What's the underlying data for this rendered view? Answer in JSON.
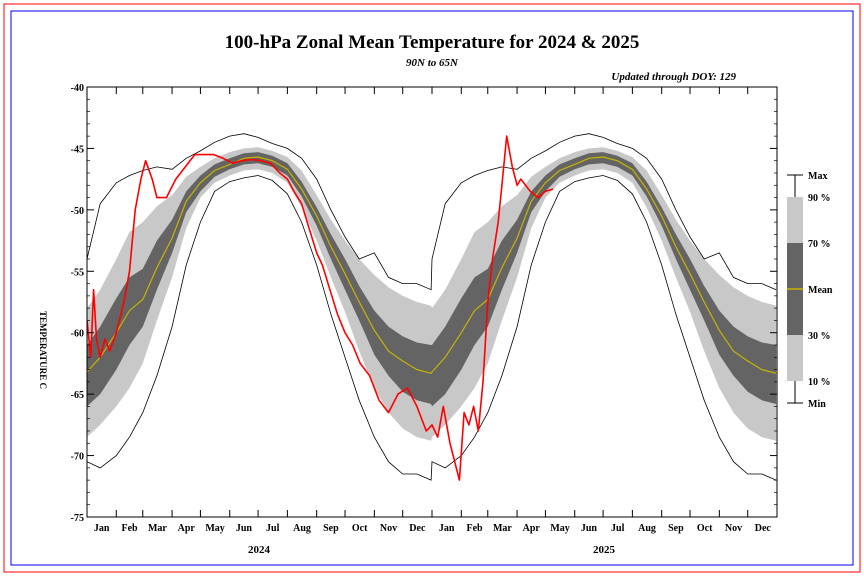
{
  "chart_data": {
    "type": "area",
    "title": "100-hPa Zonal Mean Temperature for 2024 & 2025",
    "subtitle": "90N to 65N",
    "updated": "Updated through DOY: 129",
    "ylabel": "TEMPERATURE C",
    "ylim": [
      -75,
      -40
    ],
    "yticks": [
      -75,
      -70,
      -65,
      -60,
      -55,
      -50,
      -45,
      -40
    ],
    "ytick_labels": [
      "-75",
      "-70",
      "-65",
      "-60",
      "-55",
      "-50",
      "-45",
      "-40"
    ],
    "xlim_days": [
      1,
      731
    ],
    "months": [
      "Jan",
      "Feb",
      "Mar",
      "Apr",
      "May",
      "Jun",
      "Jul",
      "Aug",
      "Sep",
      "Oct",
      "Nov",
      "Dec",
      "Jan",
      "Feb",
      "Mar",
      "Apr",
      "May",
      "Jun",
      "Jul",
      "Aug",
      "Sep",
      "Oct",
      "Nov",
      "Dec"
    ],
    "month_start_days": [
      1,
      32,
      60,
      91,
      121,
      152,
      182,
      213,
      244,
      274,
      305,
      335,
      366,
      397,
      425,
      456,
      486,
      517,
      547,
      578,
      609,
      639,
      670,
      700
    ],
    "years": [
      "2024",
      "2025"
    ],
    "year_center_days": [
      183,
      548
    ],
    "legend": [
      "Max",
      "90 %",
      "70 %",
      "Mean",
      "30 %",
      "10 %",
      "Min"
    ],
    "climatology_days": [
      1,
      15,
      32,
      46,
      60,
      75,
      91,
      106,
      121,
      136,
      152,
      167,
      182,
      197,
      213,
      228,
      244,
      259,
      274,
      289,
      305,
      320,
      335,
      350,
      365
    ],
    "climatology": {
      "mean": [
        -63.2,
        -62.0,
        -60.0,
        -58.2,
        -57.3,
        -54.7,
        -52.3,
        -49.3,
        -47.8,
        -46.8,
        -46.3,
        -45.8,
        -45.7,
        -46.0,
        -46.7,
        -48.3,
        -50.5,
        -53.0,
        -55.2,
        -57.5,
        -59.8,
        -61.5,
        -62.3,
        -63.0,
        -63.3
      ],
      "p10": [
        -68.5,
        -67.5,
        -66.0,
        -64.5,
        -62.5,
        -59.0,
        -55.5,
        -51.5,
        -49.0,
        -47.8,
        -47.2,
        -46.8,
        -46.7,
        -47.0,
        -47.8,
        -49.8,
        -52.5,
        -55.5,
        -58.3,
        -61.5,
        -64.5,
        -66.5,
        -67.8,
        -68.5,
        -68.8
      ],
      "p30": [
        -66.0,
        -65.0,
        -63.0,
        -61.0,
        -59.5,
        -56.5,
        -53.5,
        -50.2,
        -48.5,
        -47.3,
        -46.7,
        -46.3,
        -46.2,
        -46.5,
        -47.2,
        -48.9,
        -51.3,
        -54.0,
        -56.5,
        -59.0,
        -61.8,
        -63.5,
        -64.8,
        -65.5,
        -65.8
      ],
      "p70": [
        -61.0,
        -59.5,
        -57.2,
        -55.5,
        -54.8,
        -52.5,
        -50.8,
        -48.5,
        -47.2,
        -46.3,
        -45.8,
        -45.4,
        -45.3,
        -45.6,
        -46.2,
        -47.7,
        -49.8,
        -52.0,
        -54.0,
        -56.2,
        -58.2,
        -59.5,
        -60.3,
        -60.8,
        -61.0
      ],
      "p90": [
        -58.0,
        -56.5,
        -54.0,
        -51.8,
        -51.0,
        -49.7,
        -48.8,
        -47.3,
        -46.5,
        -45.8,
        -45.3,
        -45.0,
        -44.9,
        -45.2,
        -45.7,
        -46.8,
        -48.8,
        -50.8,
        -52.5,
        -54.0,
        -55.3,
        -56.3,
        -57.0,
        -57.5,
        -57.8
      ],
      "max": [
        -54.0,
        -49.5,
        -47.8,
        -47.2,
        -46.8,
        -46.5,
        -46.7,
        -45.8,
        -45.2,
        -44.5,
        -44.0,
        -43.8,
        -44.1,
        -44.6,
        -45.0,
        -45.8,
        -47.5,
        -50.0,
        -52.2,
        -54.0,
        -53.5,
        -55.5,
        -56.0,
        -56.0,
        -56.5
      ],
      "min": [
        -70.5,
        -71.0,
        -70.0,
        -68.5,
        -66.5,
        -63.5,
        -59.5,
        -54.5,
        -51.0,
        -48.5,
        -47.7,
        -47.4,
        -47.2,
        -47.6,
        -48.7,
        -51.0,
        -54.5,
        -58.5,
        -62.0,
        -65.5,
        -68.5,
        -70.5,
        -71.5,
        -71.5,
        -72.0
      ]
    },
    "observed": {
      "days": [
        1,
        5,
        8,
        11,
        15,
        20,
        25,
        32,
        40,
        46,
        52,
        58,
        63,
        70,
        75,
        85,
        95,
        105,
        115,
        125,
        135,
        145,
        155,
        165,
        175,
        185,
        195,
        205,
        213,
        220,
        228,
        236,
        244,
        250,
        258,
        266,
        274,
        282,
        290,
        300,
        310,
        320,
        330,
        340,
        350,
        360,
        366,
        372,
        378,
        385,
        390,
        395,
        400,
        405,
        410,
        415,
        420,
        425,
        430,
        436,
        440,
        445,
        451,
        456,
        460,
        465,
        470,
        478,
        486,
        494
      ],
      "temps": [
        -59.0,
        -62.0,
        -56.5,
        -60.5,
        -62.0,
        -60.5,
        -61.5,
        -60.0,
        -57.5,
        -55.0,
        -50.0,
        -47.5,
        -46.0,
        -47.5,
        -49.0,
        -49.0,
        -47.5,
        -46.5,
        -45.5,
        -45.5,
        -45.5,
        -45.8,
        -46.2,
        -46.0,
        -45.9,
        -46.0,
        -46.2,
        -47.0,
        -47.5,
        -48.5,
        -49.5,
        -51.5,
        -53.5,
        -54.5,
        -56.5,
        -58.5,
        -60.0,
        -61.0,
        -62.5,
        -63.5,
        -65.5,
        -66.5,
        -65.0,
        -64.5,
        -66.0,
        -68.0,
        -67.5,
        -68.5,
        -66.0,
        -69.0,
        -70.5,
        -72.0,
        -66.5,
        -67.5,
        -66.0,
        -68.0,
        -64.0,
        -57.5,
        -54.0,
        -51.0,
        -48.0,
        -44.0,
        -46.5,
        -48.0,
        -47.5,
        -48.0,
        -48.5,
        -49.0,
        -48.5,
        -48.3
      ]
    },
    "colors": {
      "observed": "#ff0000",
      "mean": "#c8b400",
      "band_outer": "#c8c8c8",
      "band_inner": "#646464",
      "extremes": "#000000",
      "frame_outer": "#ff0000",
      "frame_inner": "#0000ff"
    }
  }
}
